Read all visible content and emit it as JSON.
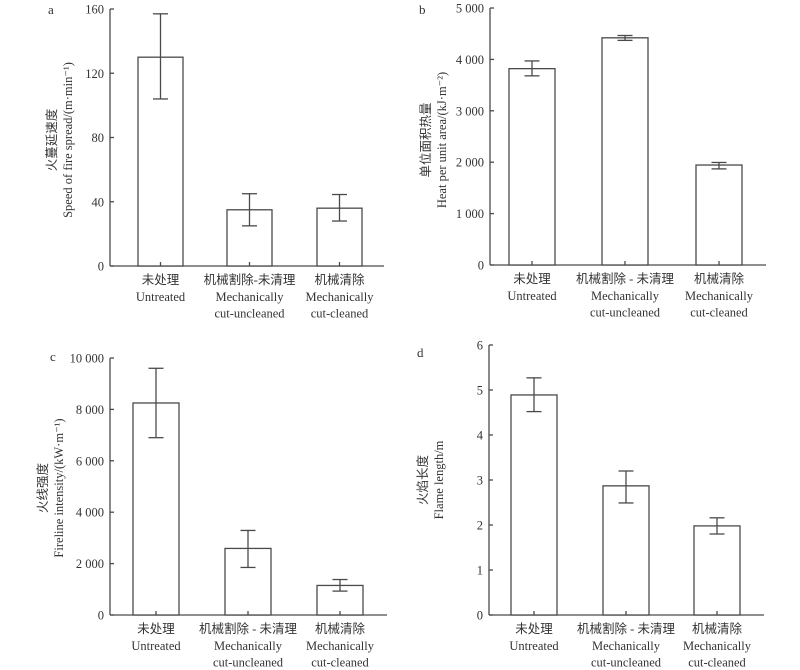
{
  "chart_data": [
    {
      "panel": "a",
      "type": "bar",
      "title": "",
      "ylabel_cn": "火蔓延速度",
      "ylabel": "Speed of fire spread/(m·min⁻¹)",
      "xlabel": "",
      "ylim": [
        0,
        160
      ],
      "yticks": [
        0,
        40,
        80,
        120,
        160
      ],
      "ytick_labels": [
        "0",
        "40",
        "80",
        "120",
        "160"
      ],
      "categories": [
        {
          "cn": "未处理",
          "en": [
            "Untreated"
          ]
        },
        {
          "cn": "机械割除-未清理",
          "en": [
            "Mechanically",
            "cut-uncleaned"
          ]
        },
        {
          "cn": "机械清除",
          "en": [
            "Mechanically",
            "cut-cleaned"
          ]
        }
      ],
      "values": [
        130,
        35,
        36
      ],
      "error_low": [
        104,
        25,
        28
      ],
      "error_high": [
        157,
        45,
        44.5
      ],
      "grid": false
    },
    {
      "panel": "b",
      "type": "bar",
      "title": "",
      "ylabel_cn": "单位面积热量",
      "ylabel": "Heat per unit area/(kJ·m⁻²)",
      "xlabel": "",
      "ylim": [
        0,
        5000
      ],
      "yticks": [
        0,
        1000,
        2000,
        3000,
        4000,
        5000
      ],
      "ytick_labels": [
        "0",
        "1 000",
        "2 000",
        "3 000",
        "4 000",
        "5 000"
      ],
      "categories": [
        {
          "cn": "未处理",
          "en": [
            "Untreated"
          ]
        },
        {
          "cn": "机械割除 - 未清理",
          "en": [
            "Mechanically",
            "cut-uncleaned"
          ]
        },
        {
          "cn": "机械清除",
          "en": [
            "Mechanically",
            "cut-cleaned"
          ]
        }
      ],
      "values": [
        3820,
        4420,
        1945
      ],
      "error_low": [
        3680,
        4370,
        1870
      ],
      "error_high": [
        3970,
        4465,
        1995
      ],
      "grid": false
    },
    {
      "panel": "c",
      "type": "bar",
      "title": "",
      "ylabel_cn": "火线强度",
      "ylabel": "Fireline intensity/(kW·m⁻¹)",
      "xlabel": "",
      "ylim": [
        0,
        10000
      ],
      "yticks": [
        0,
        2000,
        4000,
        6000,
        8000,
        10000
      ],
      "ytick_labels": [
        "0",
        "2 000",
        "4 000",
        "6 000",
        "8 000",
        "10 000"
      ],
      "categories": [
        {
          "cn": "未处理",
          "en": [
            "Untreated"
          ]
        },
        {
          "cn": "机械割除 - 未清理",
          "en": [
            "Mechanically",
            "cut-uncleaned"
          ]
        },
        {
          "cn": "机械清除",
          "en": [
            "Mechanically",
            "cut-cleaned"
          ]
        }
      ],
      "values": [
        8250,
        2590,
        1150
      ],
      "error_low": [
        6900,
        1850,
        930
      ],
      "error_high": [
        9600,
        3290,
        1380
      ],
      "grid": false
    },
    {
      "panel": "d",
      "type": "bar",
      "title": "",
      "ylabel_cn": "火焰长度",
      "ylabel": "Flame length/m",
      "xlabel": "",
      "ylim": [
        0,
        6
      ],
      "yticks": [
        0,
        1,
        2,
        3,
        4,
        5,
        6
      ],
      "ytick_labels": [
        "0",
        "1",
        "2",
        "3",
        "4",
        "5",
        "6"
      ],
      "categories": [
        {
          "cn": "未处理",
          "en": [
            "Untreated"
          ]
        },
        {
          "cn": "机械割除 - 未清理",
          "en": [
            "Mechanically",
            "cut-uncleaned"
          ]
        },
        {
          "cn": "机械清除",
          "en": [
            "Mechanically",
            "cut-cleaned"
          ]
        }
      ],
      "values": [
        4.89,
        2.87,
        1.98
      ],
      "error_low": [
        4.52,
        2.49,
        1.8
      ],
      "error_high": [
        5.27,
        3.2,
        2.16
      ],
      "grid": false
    }
  ]
}
